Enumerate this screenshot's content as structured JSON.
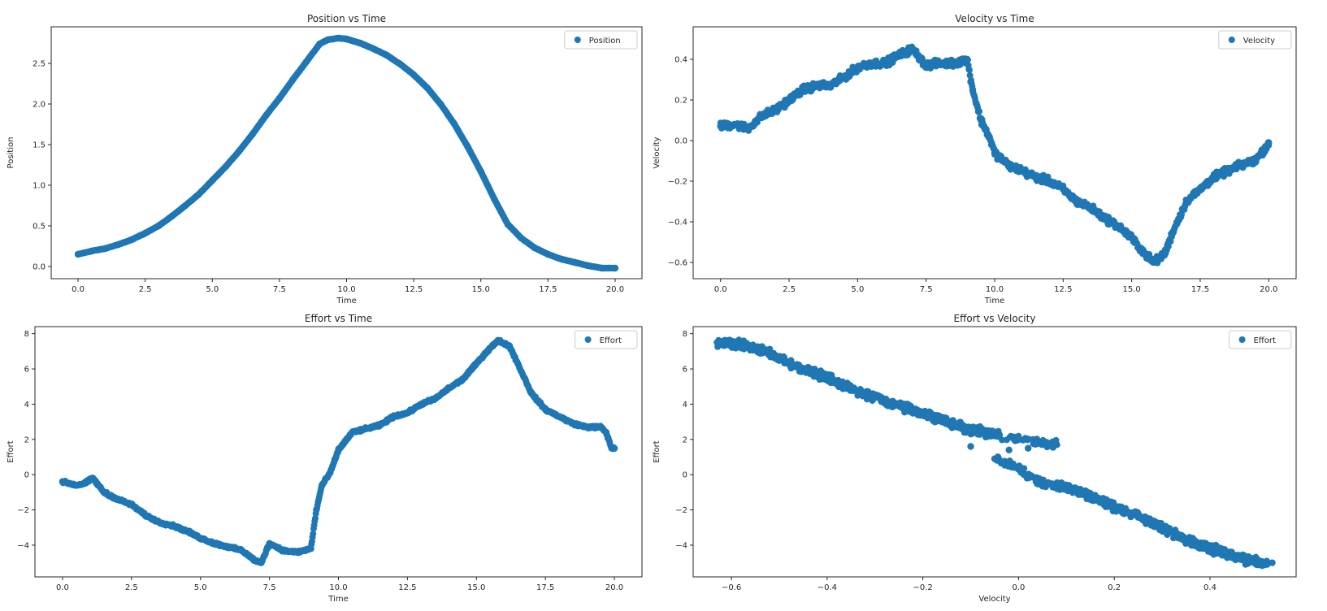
{
  "colors": {
    "marker": "#1f77b4",
    "axes": "#262626",
    "background": "#ffffff"
  },
  "chart_data": [
    {
      "id": "position",
      "type": "scatter",
      "title": "Position vs Time",
      "xlabel": "Time",
      "ylabel": "Position",
      "xlim": [
        -1,
        21
      ],
      "ylim": [
        -0.15,
        2.95
      ],
      "xticks": [
        0,
        2.5,
        5,
        7.5,
        10,
        12.5,
        15,
        17.5,
        20
      ],
      "xtick_labels": [
        "0.0",
        "2.5",
        "5.0",
        "7.5",
        "10.0",
        "12.5",
        "15.0",
        "17.5",
        "20.0"
      ],
      "yticks": [
        0,
        0.5,
        1,
        1.5,
        2,
        2.5
      ],
      "ytick_labels": [
        "0.0",
        "0.5",
        "1.0",
        "1.5",
        "2.0",
        "2.5"
      ],
      "legend": "upper right",
      "grid": false,
      "series": [
        {
          "name": "Position",
          "x": [
            0,
            0.5,
            1,
            1.5,
            2,
            2.5,
            3,
            3.5,
            4,
            4.5,
            5,
            5.5,
            6,
            6.5,
            7,
            7.5,
            8,
            8.5,
            9,
            9.3,
            9.7,
            10,
            10.5,
            11,
            11.5,
            12,
            12.5,
            13,
            13.5,
            14,
            14.5,
            15,
            15.5,
            16,
            16.5,
            17,
            17.5,
            18,
            18.5,
            19,
            19.5,
            20
          ],
          "y": [
            0.15,
            0.19,
            0.22,
            0.27,
            0.33,
            0.41,
            0.5,
            0.62,
            0.75,
            0.89,
            1.06,
            1.23,
            1.42,
            1.63,
            1.86,
            2.07,
            2.3,
            2.52,
            2.74,
            2.79,
            2.81,
            2.8,
            2.75,
            2.68,
            2.6,
            2.49,
            2.36,
            2.2,
            2.0,
            1.76,
            1.48,
            1.17,
            0.83,
            0.52,
            0.35,
            0.23,
            0.15,
            0.09,
            0.05,
            0.01,
            -0.02,
            -0.02
          ]
        }
      ]
    },
    {
      "id": "velocity",
      "type": "scatter",
      "title": "Velocity vs Time",
      "xlabel": "Time",
      "ylabel": "Velocity",
      "xlim": [
        -1,
        21
      ],
      "ylim": [
        -0.68,
        0.56
      ],
      "xticks": [
        0,
        2.5,
        5,
        7.5,
        10,
        12.5,
        15,
        17.5,
        20
      ],
      "xtick_labels": [
        "0.0",
        "2.5",
        "5.0",
        "7.5",
        "10.0",
        "12.5",
        "15.0",
        "17.5",
        "20.0"
      ],
      "yticks": [
        -0.6,
        -0.4,
        -0.2,
        0,
        0.2,
        0.4
      ],
      "ytick_labels": [
        "−0.6",
        "−0.4",
        "−0.2",
        "0.0",
        "0.2",
        "0.4"
      ],
      "legend": "upper right",
      "grid": false,
      "series": [
        {
          "name": "Velocity",
          "x": [
            0,
            0.5,
            1,
            1.5,
            2,
            2.5,
            3,
            3.5,
            4,
            4.5,
            5,
            5.5,
            6,
            6.5,
            7,
            7.5,
            8,
            8.5,
            9,
            9.2,
            9.5,
            9.8,
            10,
            10.5,
            11,
            11.5,
            12,
            12.5,
            13,
            13.5,
            14,
            14.5,
            15,
            15.5,
            15.8,
            16.2,
            16.5,
            17,
            17.5,
            18,
            18.5,
            19,
            19.5,
            19.8,
            20
          ],
          "y": [
            0.07,
            0.08,
            0.06,
            0.12,
            0.15,
            0.2,
            0.25,
            0.27,
            0.27,
            0.31,
            0.36,
            0.38,
            0.38,
            0.42,
            0.45,
            0.37,
            0.38,
            0.38,
            0.4,
            0.25,
            0.1,
            0.02,
            -0.06,
            -0.12,
            -0.15,
            -0.18,
            -0.2,
            -0.24,
            -0.3,
            -0.33,
            -0.38,
            -0.42,
            -0.48,
            -0.56,
            -0.6,
            -0.56,
            -0.45,
            -0.3,
            -0.24,
            -0.18,
            -0.15,
            -0.12,
            -0.1,
            -0.05,
            -0.01
          ]
        }
      ]
    },
    {
      "id": "effort_time",
      "type": "scatter",
      "title": "Effort vs Time",
      "xlabel": "Time",
      "ylabel": "Effort",
      "xlim": [
        -1,
        21
      ],
      "ylim": [
        -5.8,
        8.4
      ],
      "xticks": [
        0,
        2.5,
        5,
        7.5,
        10,
        12.5,
        15,
        17.5,
        20
      ],
      "xtick_labels": [
        "0.0",
        "2.5",
        "5.0",
        "7.5",
        "10.0",
        "12.5",
        "15.0",
        "17.5",
        "20.0"
      ],
      "yticks": [
        -4,
        -2,
        0,
        2,
        4,
        6,
        8
      ],
      "ytick_labels": [
        "−4",
        "−2",
        "0",
        "2",
        "4",
        "6",
        "8"
      ],
      "legend": "upper right",
      "grid": false,
      "series": [
        {
          "name": "Effort",
          "x": [
            0,
            0.5,
            0.8,
            1,
            1.1,
            1.3,
            1.5,
            2,
            2.5,
            3,
            3.5,
            4,
            4.5,
            5,
            5.5,
            6,
            6.5,
            7,
            7.2,
            7.5,
            8,
            8.5,
            9,
            9.2,
            9.4,
            9.7,
            10,
            10.5,
            11,
            11.5,
            12,
            12.5,
            13,
            13.5,
            14,
            14.5,
            15,
            15.5,
            15.8,
            16.2,
            16.5,
            17,
            17.5,
            18,
            18.5,
            19,
            19.5,
            19.7,
            19.9,
            20
          ],
          "y": [
            -0.4,
            -0.6,
            -0.5,
            -0.3,
            -0.2,
            -0.6,
            -1.0,
            -1.4,
            -1.7,
            -2.3,
            -2.7,
            -2.9,
            -3.2,
            -3.6,
            -3.9,
            -4.1,
            -4.3,
            -4.9,
            -5.0,
            -3.9,
            -4.3,
            -4.4,
            -4.2,
            -2.0,
            -0.6,
            0.1,
            1.4,
            2.4,
            2.6,
            2.8,
            3.3,
            3.5,
            4.0,
            4.3,
            4.9,
            5.4,
            6.3,
            7.2,
            7.6,
            7.3,
            6.3,
            4.6,
            3.7,
            3.3,
            2.9,
            2.7,
            2.7,
            2.4,
            1.5,
            1.5
          ]
        }
      ]
    },
    {
      "id": "effort_velocity",
      "type": "scatter",
      "title": "Effort vs Velocity",
      "xlabel": "Velocity",
      "ylabel": "Effort",
      "xlim": [
        -0.68,
        0.58
      ],
      "ylim": [
        -5.8,
        8.4
      ],
      "xticks": [
        -0.6,
        -0.4,
        -0.2,
        0,
        0.2,
        0.4
      ],
      "xtick_labels": [
        "−0.6",
        "−0.4",
        "−0.2",
        "0.0",
        "0.2",
        "0.4"
      ],
      "yticks": [
        -4,
        -2,
        0,
        2,
        4,
        6,
        8
      ],
      "ytick_labels": [
        "−4",
        "−2",
        "0",
        "2",
        "4",
        "6",
        "8"
      ],
      "legend": "upper right",
      "grid": false,
      "series": [
        {
          "name": "Effort",
          "x": [
            -0.63,
            -0.6,
            -0.55,
            -0.5,
            -0.45,
            -0.4,
            -0.35,
            -0.3,
            -0.25,
            -0.2,
            -0.15,
            -0.1,
            -0.05,
            0,
            0.05,
            0.08,
            -0.05,
            0,
            0.05,
            0.1,
            0.15,
            0.2,
            0.25,
            0.3,
            0.35,
            0.4,
            0.45,
            0.5,
            0.53,
            -0.1,
            -0.02,
            0.02
          ],
          "y": [
            7.5,
            7.4,
            7.2,
            6.6,
            6.0,
            5.5,
            4.9,
            4.4,
            3.9,
            3.5,
            3.0,
            2.6,
            2.3,
            2.0,
            1.8,
            1.7,
            0.9,
            0.3,
            -0.5,
            -0.7,
            -1.2,
            -1.8,
            -2.4,
            -3.0,
            -3.7,
            -4.2,
            -4.6,
            -5.0,
            -5.0,
            1.6,
            1.4,
            1.5
          ]
        }
      ]
    }
  ]
}
